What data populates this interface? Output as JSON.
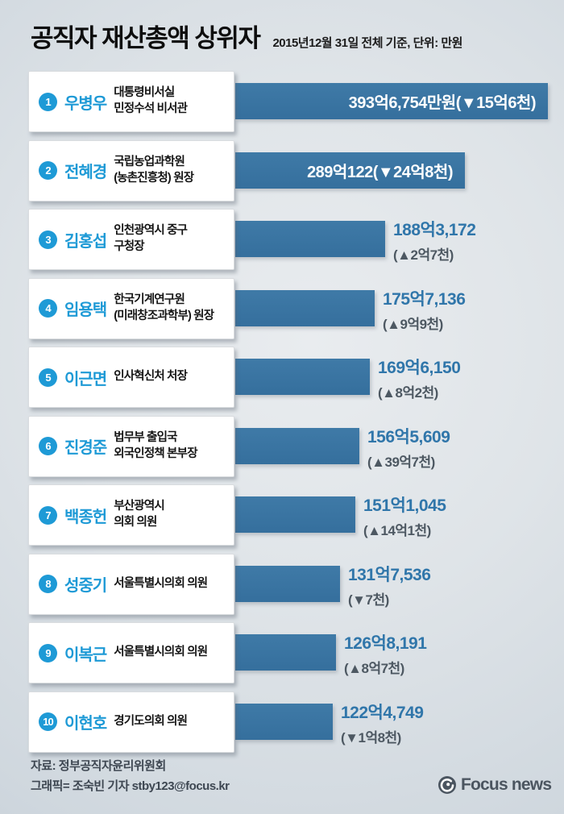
{
  "header": {
    "title": "공직자 재산총액 상위자",
    "subtitle": "2015년12월 31일 전체 기준, 단위: 만원"
  },
  "footer": {
    "source": "자료: 정부공직자윤리위원회",
    "credit": "그래픽= 조숙빈 기자 stby123@focus.kr",
    "logo_text": "Focus news"
  },
  "colors": {
    "background": "#d5dce2",
    "bar_blue": "#37719f",
    "accent_blue": "#1e9ad6",
    "value_blue": "#3076aa",
    "change_gray": "#4d5862",
    "logo_gray": "#4b5560"
  },
  "chart_data": {
    "type": "bar",
    "title": "공직자 재산총액 상위자",
    "unit": "만원",
    "orientation": "horizontal",
    "xlim_eok": [
      0,
      400
    ],
    "categories": [
      "우병우",
      "전혜경",
      "김홍섭",
      "임용택",
      "이근면",
      "진경준",
      "백종헌",
      "성중기",
      "이복근",
      "이현호"
    ],
    "values_eok": [
      393.6754,
      289.0122,
      188.3172,
      175.7136,
      169.615,
      156.5609,
      151.1045,
      131.7536,
      126.8191,
      122.4749
    ],
    "rows": [
      {
        "rank": "1",
        "name": "우병우",
        "position": "대통령비서실\n민정수석 비서관",
        "value_eok": 393.6754,
        "value_label": "393억6,754만원(▼15억6천)",
        "value_in_bar": true
      },
      {
        "rank": "2",
        "name": "전혜경",
        "position": "국립농업과학원\n(농촌진흥청) 원장",
        "value_eok": 289.0122,
        "value_label": "289억122(▼24억8천)",
        "value_in_bar": true
      },
      {
        "rank": "3",
        "name": "김홍섭",
        "position": "인천광역시 중구\n구청장",
        "value_eok": 188.3172,
        "value_label": "188억3,172",
        "change_label": "(▲2억7천)",
        "value_in_bar": false
      },
      {
        "rank": "4",
        "name": "임용택",
        "position": "한국기계연구원\n(미래창조과학부) 원장",
        "value_eok": 175.7136,
        "value_label": "175억7,136",
        "change_label": "(▲9억9천)",
        "value_in_bar": false
      },
      {
        "rank": "5",
        "name": "이근면",
        "position": "인사혁신처 처장",
        "value_eok": 169.615,
        "value_label": "169억6,150",
        "change_label": "(▲8억2천)",
        "value_in_bar": false
      },
      {
        "rank": "6",
        "name": "진경준",
        "position": "법무부 출입국\n외국인정책 본부장",
        "value_eok": 156.5609,
        "value_label": "156억5,609",
        "change_label": "(▲39억7천)",
        "value_in_bar": false
      },
      {
        "rank": "7",
        "name": "백종헌",
        "position": "부산광역시\n의회 의원",
        "value_eok": 151.1045,
        "value_label": "151억1,045",
        "change_label": "(▲14억1천)",
        "value_in_bar": false
      },
      {
        "rank": "8",
        "name": "성중기",
        "position": "서울특별시의회 의원",
        "value_eok": 131.7536,
        "value_label": "131억7,536",
        "change_label": "(▼7천)",
        "value_in_bar": false
      },
      {
        "rank": "9",
        "name": "이복근",
        "position": "서울특별시의회 의원",
        "value_eok": 126.8191,
        "value_label": "126억8,191",
        "change_label": "(▲8억7천)",
        "value_in_bar": false
      },
      {
        "rank": "10",
        "name": "이현호",
        "position": "경기도의회 의원",
        "value_eok": 122.4749,
        "value_label": "122억4,749",
        "change_label": "(▼1억8천)",
        "value_in_bar": false
      }
    ]
  }
}
